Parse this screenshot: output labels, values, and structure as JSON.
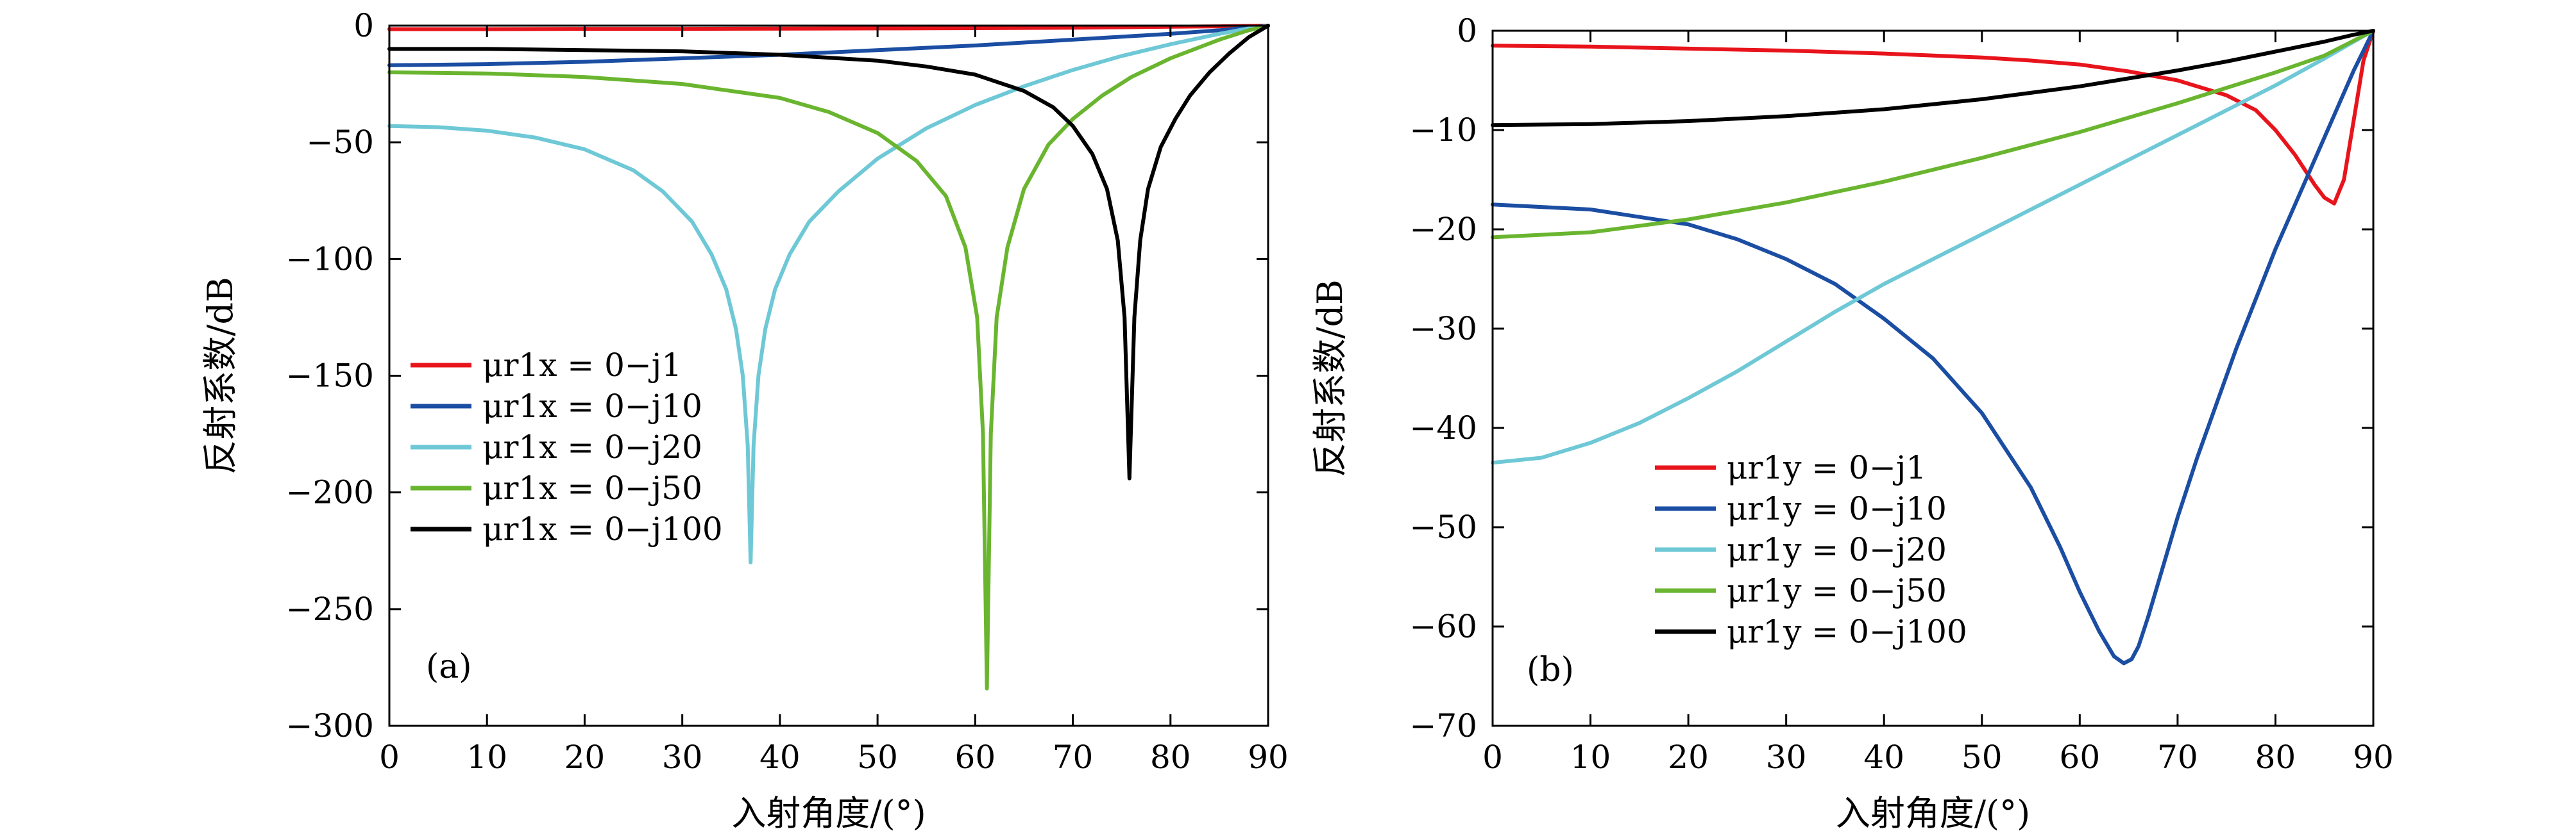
{
  "chart_data": [
    {
      "type": "line",
      "panel_label": "(a)",
      "xlabel": "入射角度/(°)",
      "ylabel": "反射系数/dB",
      "xlim": [
        0,
        90
      ],
      "ylim": [
        -300,
        0
      ],
      "xticks": [
        "0",
        "10",
        "20",
        "30",
        "40",
        "50",
        "60",
        "70",
        "80",
        "90"
      ],
      "yticks": [
        "0",
        "−50",
        "−100",
        "−150",
        "−200",
        "−250",
        "−300"
      ],
      "grid": false,
      "legend_position": "left",
      "series": [
        {
          "name": "μr1x = 0−j1",
          "color": "#e8141c",
          "x": [
            0,
            10,
            20,
            30,
            40,
            50,
            60,
            70,
            80,
            85,
            88,
            90
          ],
          "y": [
            -1.5,
            -1.5,
            -1.4,
            -1.4,
            -1.3,
            -1.2,
            -1.1,
            -0.9,
            -0.5,
            -0.3,
            -0.1,
            0
          ]
        },
        {
          "name": "μr1x = 0−j10",
          "color": "#1b4ea3",
          "x": [
            0,
            10,
            20,
            30,
            40,
            50,
            60,
            70,
            80,
            85,
            90
          ],
          "y": [
            -17,
            -16.5,
            -15.5,
            -14,
            -12.5,
            -10.5,
            -8.5,
            -6,
            -3.5,
            -2,
            0
          ]
        },
        {
          "name": "μr1x = 0−j20",
          "color": "#6ec8d6",
          "x": [
            0,
            5,
            10,
            15,
            20,
            25,
            28,
            31,
            33,
            34.5,
            35.5,
            36.2,
            36.7,
            37,
            37.3,
            37.8,
            38.5,
            39.5,
            41,
            43,
            46,
            50,
            55,
            60,
            65,
            70,
            75,
            80,
            85,
            88,
            90
          ],
          "y": [
            -43,
            -43.5,
            -45,
            -48,
            -53,
            -62,
            -71,
            -84,
            -98,
            -113,
            -130,
            -150,
            -180,
            -230,
            -180,
            -150,
            -130,
            -113,
            -98,
            -84,
            -71,
            -57,
            -44,
            -34,
            -26,
            -19,
            -13,
            -8,
            -3.5,
            -1.2,
            0
          ]
        },
        {
          "name": "μr1x = 0−j50",
          "color": "#6ab52f",
          "x": [
            0,
            10,
            20,
            30,
            40,
            45,
            50,
            54,
            57,
            59,
            60.2,
            60.8,
            61.2,
            61.6,
            62.2,
            63.3,
            65,
            67.5,
            70,
            73,
            76,
            80,
            85,
            88,
            90
          ],
          "y": [
            -20,
            -20.5,
            -22,
            -25,
            -31,
            -37,
            -46,
            -58,
            -73,
            -95,
            -125,
            -175,
            -284,
            -175,
            -125,
            -95,
            -70,
            -51,
            -40,
            -30,
            -22,
            -14,
            -6,
            -2,
            0
          ]
        },
        {
          "name": "μr1x = 0−j100",
          "color": "#000000",
          "x": [
            0,
            10,
            20,
            30,
            40,
            50,
            55,
            60,
            65,
            68,
            70,
            72,
            73.5,
            74.6,
            75.3,
            75.8,
            76.3,
            76.9,
            77.7,
            79,
            80.5,
            82,
            84,
            86,
            88,
            90
          ],
          "y": [
            -10,
            -10,
            -10.5,
            -11,
            -12.5,
            -15,
            -17.5,
            -21,
            -28,
            -35,
            -43,
            -55,
            -70,
            -92,
            -125,
            -194,
            -125,
            -92,
            -70,
            -52,
            -40,
            -30,
            -20,
            -12,
            -5,
            0
          ]
        }
      ]
    },
    {
      "type": "line",
      "panel_label": "(b)",
      "xlabel": "入射角度/(°)",
      "ylabel": "反射系数/dB",
      "xlim": [
        0,
        90
      ],
      "ylim": [
        -70,
        0
      ],
      "xticks": [
        "0",
        "10",
        "20",
        "30",
        "40",
        "50",
        "60",
        "70",
        "80",
        "90"
      ],
      "yticks": [
        "0",
        "−10",
        "−20",
        "−30",
        "−40",
        "−50",
        "−60",
        "−70"
      ],
      "grid": false,
      "legend_position": "bottom-center",
      "series": [
        {
          "name": "μr1y = 0−j1",
          "color": "#e8141c",
          "x": [
            0,
            10,
            20,
            30,
            40,
            50,
            55,
            60,
            65,
            70,
            75,
            78,
            80,
            82,
            84,
            85,
            86,
            87,
            88,
            89,
            90
          ],
          "y": [
            -1.5,
            -1.6,
            -1.8,
            -2,
            -2.3,
            -2.7,
            -3,
            -3.4,
            -4.1,
            -5,
            -6.5,
            -8,
            -10,
            -12.5,
            -15.5,
            -16.8,
            -17.4,
            -15,
            -9,
            -3,
            0
          ]
        },
        {
          "name": "μr1y = 0−j10",
          "color": "#1b4ea3",
          "x": [
            0,
            10,
            20,
            25,
            30,
            35,
            40,
            45,
            50,
            55,
            58,
            60,
            62,
            63.5,
            64.5,
            65.3,
            66,
            67,
            68.5,
            70,
            72,
            74,
            76,
            78,
            80,
            82,
            84,
            86,
            88,
            90
          ],
          "y": [
            -17.5,
            -18,
            -19.5,
            -21,
            -23,
            -25.5,
            -29,
            -33,
            -38.5,
            -46,
            -52,
            -56.5,
            -60.5,
            -63,
            -63.7,
            -63.3,
            -62,
            -59,
            -54,
            -49,
            -43,
            -37.5,
            -32,
            -27,
            -22,
            -17.5,
            -13,
            -8.5,
            -4,
            0
          ]
        },
        {
          "name": "μr1y = 0−j20",
          "color": "#6ec8d6",
          "x": [
            0,
            5,
            10,
            15,
            20,
            25,
            30,
            35,
            40,
            45,
            50,
            55,
            60,
            65,
            70,
            75,
            80,
            85,
            88,
            90
          ],
          "y": [
            -43.5,
            -43,
            -41.5,
            -39.5,
            -37,
            -34.3,
            -31.3,
            -28.3,
            -25.5,
            -23,
            -20.5,
            -18,
            -15.5,
            -13,
            -10.5,
            -8,
            -5.5,
            -2.8,
            -1.1,
            0
          ]
        },
        {
          "name": "μr1y = 0−j50",
          "color": "#6ab52f",
          "x": [
            0,
            10,
            20,
            30,
            40,
            50,
            60,
            70,
            80,
            85,
            88,
            90
          ],
          "y": [
            -20.8,
            -20.3,
            -19,
            -17.3,
            -15.2,
            -12.8,
            -10.2,
            -7.3,
            -4.2,
            -2.5,
            -1,
            0
          ]
        },
        {
          "name": "μr1y = 0−j100",
          "color": "#000000",
          "x": [
            0,
            10,
            20,
            30,
            40,
            50,
            60,
            70,
            75,
            80,
            85,
            88,
            90
          ],
          "y": [
            -9.5,
            -9.4,
            -9.1,
            -8.6,
            -7.9,
            -6.9,
            -5.6,
            -4,
            -3.1,
            -2.1,
            -1.1,
            -0.4,
            0
          ]
        }
      ]
    }
  ]
}
